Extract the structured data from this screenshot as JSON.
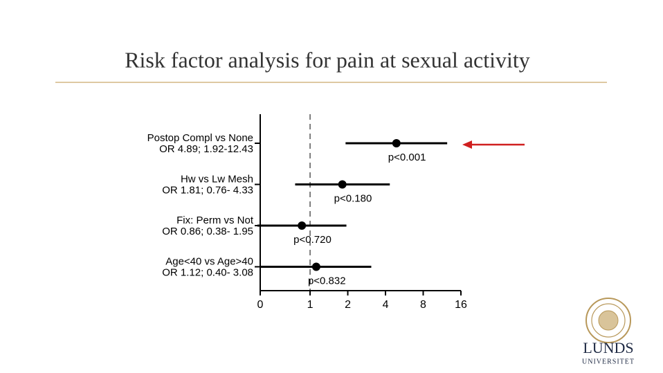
{
  "chart_data": {
    "type": "forest",
    "title": "Risk factor analysis for pain at sexual activity",
    "categories": [
      "Postop Compl vs None",
      "Hw  vs  Lw  Mesh",
      "Fix: Perm vs Not",
      "Age<40 vs Age>40"
    ],
    "or_labels": [
      "OR  4.89;  1.92-12.43",
      "OR  1.81;  0.76- 4.33",
      "OR  0.86;  0.38- 1.95",
      "OR  1.12;  0.40- 3.08"
    ],
    "values": [
      4.89,
      1.81,
      0.86,
      1.12
    ],
    "lower": [
      1.92,
      0.76,
      0.38,
      0.4
    ],
    "upper": [
      12.43,
      4.33,
      1.95,
      3.08
    ],
    "p_labels": [
      "p<0.001",
      "p<0.180",
      "p<0.720",
      "p<0.832"
    ],
    "color": "#000000",
    "log_scale": true,
    "xlim": [
      0.4,
      16
    ],
    "xticks": [
      {
        "value": 0.4,
        "label": "0"
      },
      1,
      2,
      4,
      8,
      16
    ],
    "reference": 1
  },
  "logo": {
    "name": "LUNDS",
    "subtitle": "UNIVERSITET"
  }
}
